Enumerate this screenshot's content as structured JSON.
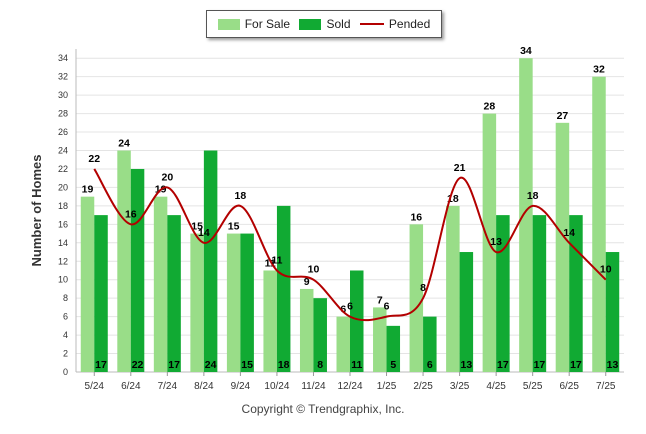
{
  "chart_data": {
    "type": "bar",
    "ylabel": "Number of Homes",
    "ylim": [
      0,
      35
    ],
    "yticks": [
      0,
      2,
      4,
      6,
      8,
      10,
      12,
      14,
      16,
      18,
      20,
      22,
      24,
      26,
      28,
      30,
      32,
      34
    ],
    "categories": [
      "5/24",
      "6/24",
      "7/24",
      "8/24",
      "9/24",
      "10/24",
      "11/24",
      "12/24",
      "1/25",
      "2/25",
      "3/25",
      "4/25",
      "5/25",
      "6/25",
      "7/25"
    ],
    "series": [
      {
        "name": "For Sale",
        "type": "bar",
        "color": "#99dd88",
        "values": [
          19,
          24,
          19,
          15,
          15,
          11,
          9,
          6,
          7,
          16,
          18,
          28,
          34,
          27,
          32
        ]
      },
      {
        "name": "Sold",
        "type": "bar",
        "color": "#11aa33",
        "values": [
          17,
          22,
          17,
          24,
          15,
          18,
          8,
          11,
          5,
          6,
          13,
          17,
          17,
          17,
          13
        ]
      },
      {
        "name": "Pended",
        "type": "line",
        "color": "#b30000",
        "values": [
          22,
          16,
          20,
          14,
          18,
          11,
          10,
          6,
          6,
          8,
          21,
          13,
          18,
          14,
          10
        ]
      }
    ],
    "grid": true,
    "legend": "top-center"
  },
  "footer": {
    "copyright": "Copyright © Trendgraphix, Inc."
  }
}
